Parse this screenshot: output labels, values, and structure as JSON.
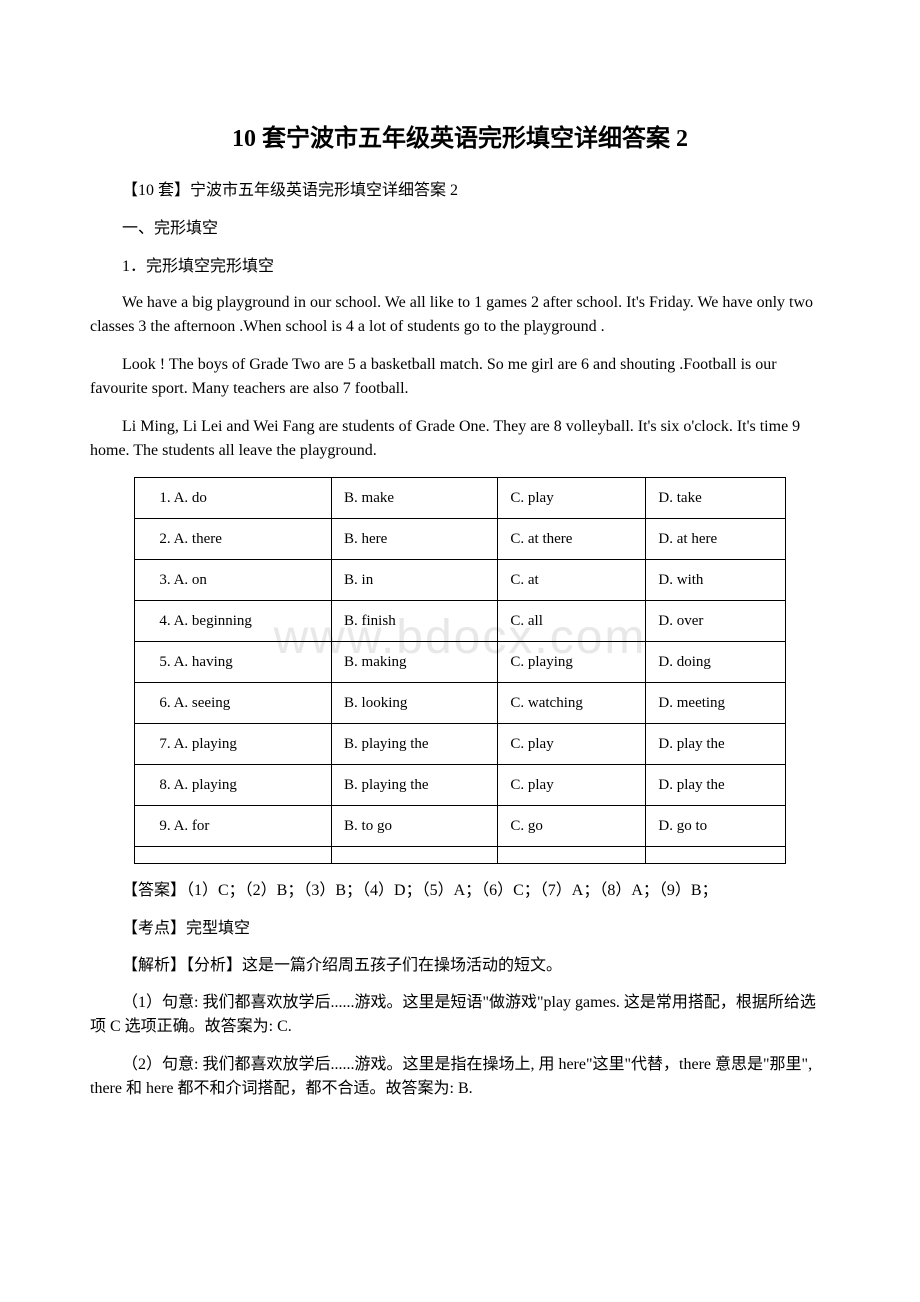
{
  "watermark": "www.bdocx.com",
  "title": "10 套宁波市五年级英语完形填空详细答案 2",
  "subtitle": "【10 套】宁波市五年级英语完形填空详细答案 2",
  "section_heading": "一、完形填空",
  "question_heading": "1．完形填空完形填空",
  "passage1": "We have a big playground in our school. We all like to 1 games 2 after school. It's Friday. We have only two classes 3  the afternoon .When school is 4  a lot of students go to the playground .",
  "passage2": "Look ! The boys of Grade Two are 5 a basketball match. So me girl are 6 and shouting .Football is our favourite sport. Many teachers are also 7 football.",
  "passage3": "Li Ming, Li Lei and Wei Fang are students of Grade One. They are  8 volleyball. It's six o'clock. It's time 9 home. The students all leave the playground.",
  "table_rows": [
    [
      "1. A. do",
      "B. make",
      "C. play",
      "D. take"
    ],
    [
      "2. A. there",
      "B. here",
      "C. at there",
      "D. at here"
    ],
    [
      "3. A. on",
      "B. in",
      "C. at",
      "D. with"
    ],
    [
      "4. A. beginning",
      "B. finish",
      "C. all",
      "D. over"
    ],
    [
      "5. A. having",
      "B. making",
      "C. playing",
      "D. doing"
    ],
    [
      "6. A. seeing",
      "B. looking",
      "C. watching",
      "D. meeting"
    ],
    [
      "7. A. playing",
      "B. playing the",
      "C. play",
      "D. play the"
    ],
    [
      "8. A. playing",
      "B. playing the",
      "C. play",
      "D. play the"
    ],
    [
      "9. A. for",
      "B. to go",
      "C. go",
      "D. go to"
    ],
    [
      "",
      "",
      "",
      ""
    ]
  ],
  "answer": "【答案】（1）C；（2）B；（3）B；（4）D；（5）A；（6）C；（7）A；（8）A；（9）B；",
  "kaodian": "【考点】完型填空",
  "jiexi_intro": "【解析】【分析】这是一篇介绍周五孩子们在操场活动的短文。",
  "explanation1": "（1）句意: 我们都喜欢放学后......游戏。这里是短语\"做游戏\"play games. 这是常用搭配，根据所给选项 C 选项正确。故答案为: C.",
  "explanation2": "（2）句意: 我们都喜欢放学后......游戏。这里是指在操场上, 用 here\"这里\"代替，there 意思是\"那里\", there 和 here 都不和介词搭配，都不合适。故答案为: B."
}
